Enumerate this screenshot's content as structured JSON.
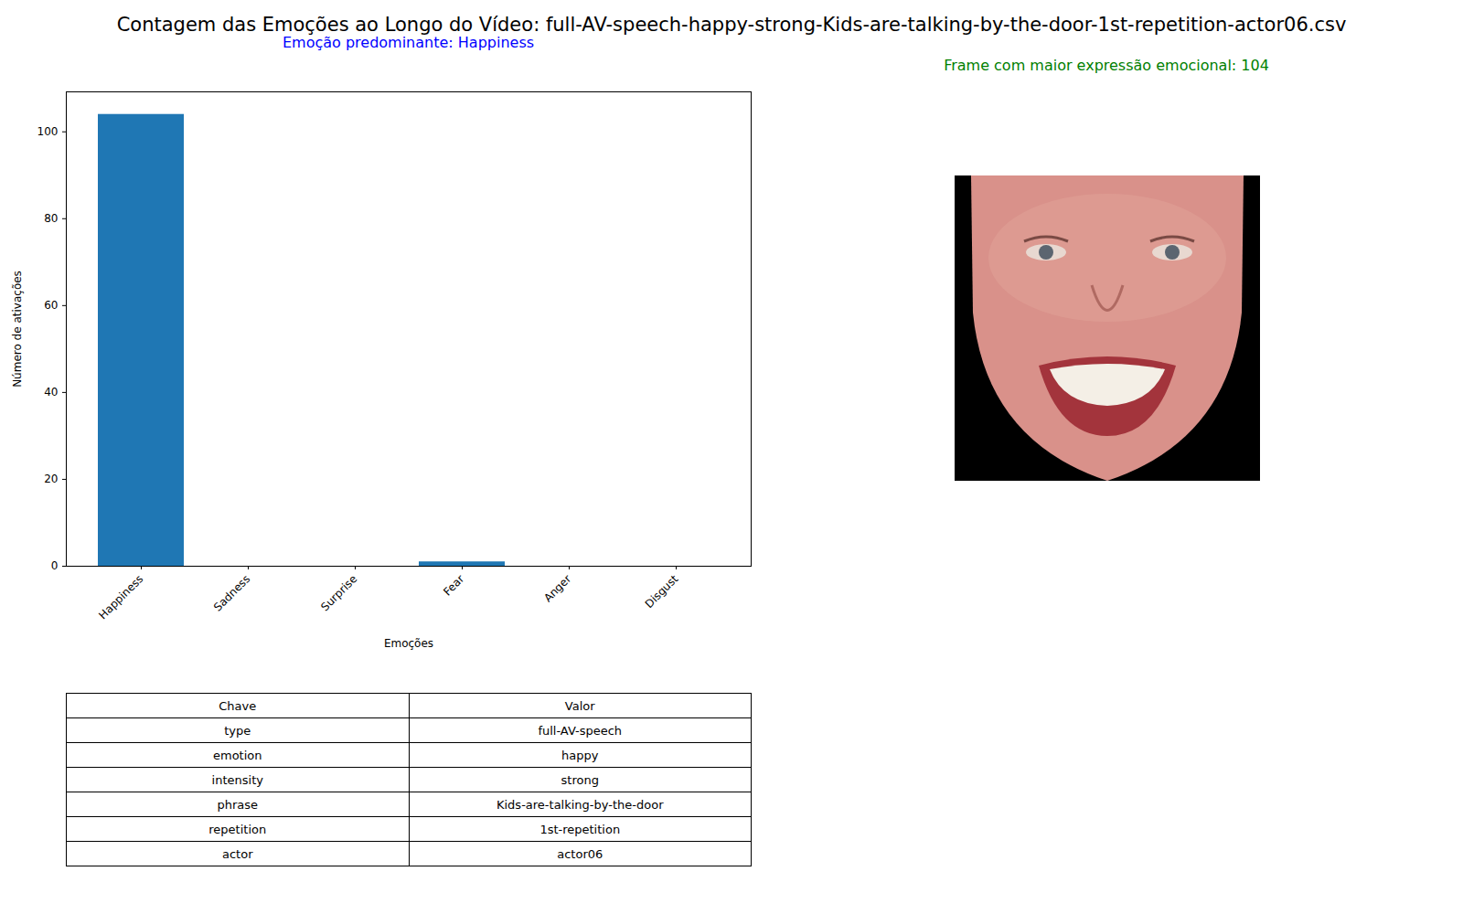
{
  "chart_data": {
    "type": "bar",
    "title": "Contagem das Emoções ao Longo do Vídeo: full-AV-speech-happy-strong-Kids-are-talking-by-the-door-1st-repetition-actor06.csv",
    "subtitle": "Emoção predominante: Happiness",
    "x_label": "Emoções",
    "y_label": "Número de ativações",
    "categories": [
      "Happiness",
      "Sadness",
      "Surprise",
      "Fear",
      "Anger",
      "Disgust"
    ],
    "values": [
      104,
      0,
      0,
      1,
      0,
      0
    ],
    "color": "#1f77b4",
    "ylim": [
      0,
      109.2
    ],
    "yticks": [
      0,
      20,
      40,
      60,
      80,
      100
    ],
    "grid": false
  },
  "annotation": "Frame com maior expressão emocional: 104",
  "table": {
    "header": [
      "Chave",
      "Valor"
    ],
    "rows": [
      [
        "type",
        "full-AV-speech"
      ],
      [
        "emotion",
        "happy"
      ],
      [
        "intensity",
        "strong"
      ],
      [
        "phrase",
        "Kids-are-talking-by-the-door"
      ],
      [
        "repetition",
        "1st-repetition"
      ],
      [
        "actor",
        "actor06"
      ]
    ]
  }
}
